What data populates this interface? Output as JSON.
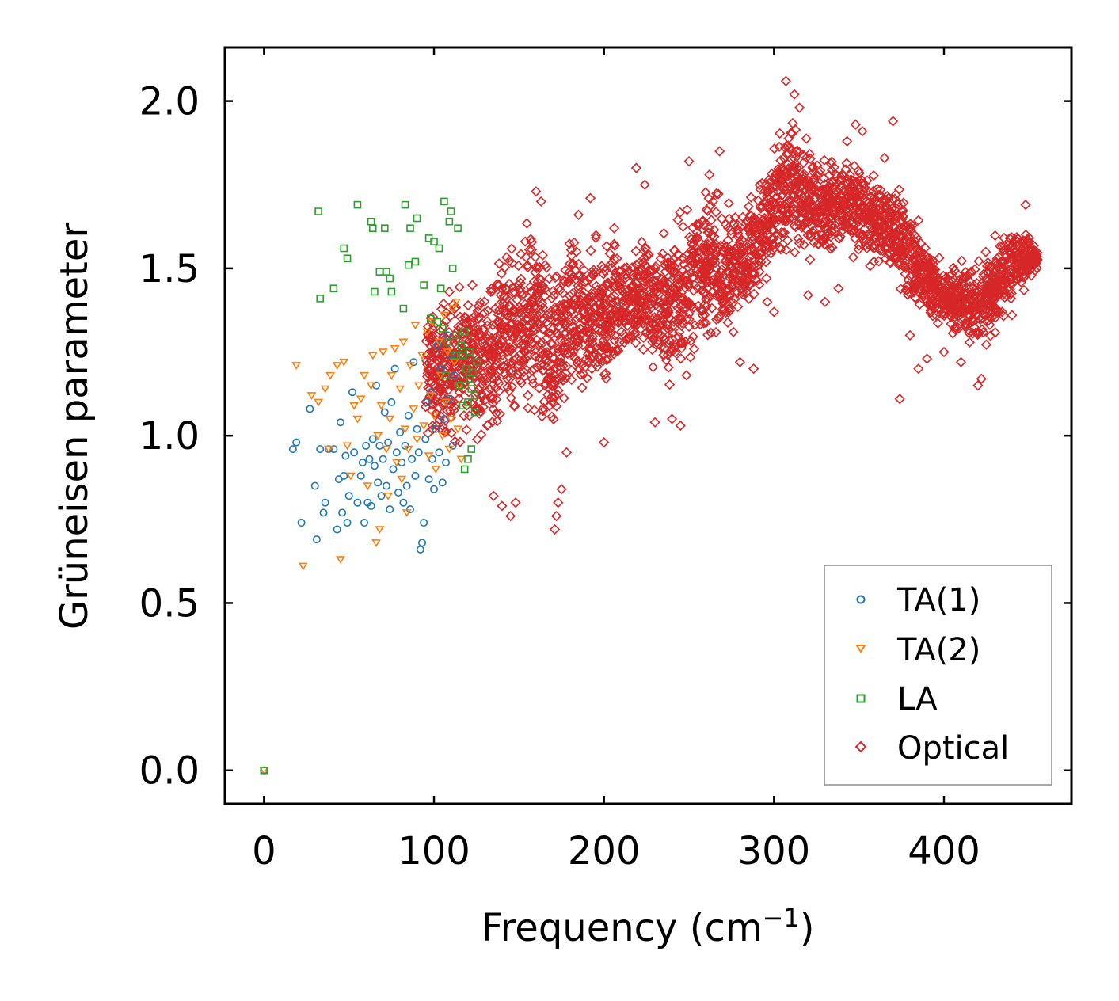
{
  "chart_data": {
    "type": "scatter",
    "title": "",
    "xlabel": "Frequency (cm",
    "xlabel_sup": "−1",
    "xlabel_close": ")",
    "ylabel": "Grüneisen parameter",
    "xlim": [
      -23,
      475
    ],
    "ylim": [
      -0.1,
      2.16
    ],
    "xticks": [
      0,
      100,
      200,
      300,
      400
    ],
    "xtick_labels": [
      "0",
      "100",
      "200",
      "300",
      "400"
    ],
    "yticks": [
      0.0,
      0.5,
      1.0,
      1.5,
      2.0
    ],
    "ytick_labels": [
      "0.0",
      "0.5",
      "1.0",
      "1.5",
      "2.0"
    ],
    "grid": false,
    "legend_position": "bottom-right",
    "series": [
      {
        "name": "TA(1)",
        "color": "#1f77b4",
        "marker": "circle",
        "points": [
          [
            0,
            0.0
          ],
          [
            17,
            0.96
          ],
          [
            19,
            0.98
          ],
          [
            22,
            0.74
          ],
          [
            27,
            1.08
          ],
          [
            30,
            0.85
          ],
          [
            31,
            0.69
          ],
          [
            33,
            0.96
          ],
          [
            35,
            0.77
          ],
          [
            36,
            0.8
          ],
          [
            38,
            0.96
          ],
          [
            41,
            0.96
          ],
          [
            43,
            0.72
          ],
          [
            44,
            0.87
          ],
          [
            45,
            1.04
          ],
          [
            46,
            0.77
          ],
          [
            47,
            0.88
          ],
          [
            48,
            0.94
          ],
          [
            49,
            0.74
          ],
          [
            50,
            0.82
          ],
          [
            52,
            1.13
          ],
          [
            53,
            0.95
          ],
          [
            55,
            0.8
          ],
          [
            57,
            0.88
          ],
          [
            58,
            0.92
          ],
          [
            59,
            0.74
          ],
          [
            60,
            0.97
          ],
          [
            61,
            0.8
          ],
          [
            62,
            0.93
          ],
          [
            63,
            0.79
          ],
          [
            64,
            0.99
          ],
          [
            65,
            0.91
          ],
          [
            66,
            1.15
          ],
          [
            67,
            0.86
          ],
          [
            68,
            0.97
          ],
          [
            69,
            0.82
          ],
          [
            70,
            0.93
          ],
          [
            71,
            1.07
          ],
          [
            72,
            0.85
          ],
          [
            73,
            0.98
          ],
          [
            74,
            0.78
          ],
          [
            75,
            1.1
          ],
          [
            76,
            0.9
          ],
          [
            77,
            1.2
          ],
          [
            78,
            0.95
          ],
          [
            79,
            0.83
          ],
          [
            80,
            1.01
          ],
          [
            81,
            0.92
          ],
          [
            82,
            0.8
          ],
          [
            83,
            0.97
          ],
          [
            84,
            0.85
          ],
          [
            85,
            1.06
          ],
          [
            86,
            0.78
          ],
          [
            87,
            0.93
          ],
          [
            88,
            1.22
          ],
          [
            89,
            0.88
          ],
          [
            90,
            1.02
          ],
          [
            91,
            0.95
          ],
          [
            92,
            0.66
          ],
          [
            93,
            0.68
          ],
          [
            94,
            0.74
          ],
          [
            95,
            0.99
          ],
          [
            96,
            1.1
          ],
          [
            97,
            0.87
          ],
          [
            98,
            1.13
          ],
          [
            99,
            0.93
          ],
          [
            100,
            0.84
          ],
          [
            101,
            1.02
          ],
          [
            102,
            1.27
          ],
          [
            103,
            0.95
          ],
          [
            104,
            1.2
          ],
          [
            105,
            0.86
          ],
          [
            106,
            1.05
          ],
          [
            107,
            0.92
          ],
          [
            108,
            1.3
          ],
          [
            109,
            1.11
          ],
          [
            110,
            1.24
          ],
          [
            111,
            0.97
          ],
          [
            112,
            1.18
          ]
        ]
      },
      {
        "name": "TA(2)",
        "color": "#ff7f0e",
        "marker": "triangle-down",
        "points": [
          [
            0,
            0.0
          ],
          [
            19,
            1.21
          ],
          [
            23,
            0.61
          ],
          [
            28,
            1.12
          ],
          [
            32,
            1.1
          ],
          [
            36,
            1.14
          ],
          [
            38,
            0.96
          ],
          [
            39,
            1.18
          ],
          [
            43,
            1.21
          ],
          [
            45,
            0.63
          ],
          [
            47,
            1.22
          ],
          [
            49,
            0.97
          ],
          [
            51,
            0.88
          ],
          [
            53,
            1.09
          ],
          [
            55,
            1.05
          ],
          [
            57,
            1.11
          ],
          [
            59,
            1.18
          ],
          [
            61,
            0.85
          ],
          [
            63,
            1.15
          ],
          [
            64,
            1.24
          ],
          [
            66,
            0.68
          ],
          [
            67,
            1.0
          ],
          [
            68,
            0.72
          ],
          [
            69,
            1.09
          ],
          [
            70,
            1.25
          ],
          [
            72,
            0.96
          ],
          [
            73,
            0.82
          ],
          [
            74,
            1.05
          ],
          [
            75,
            1.18
          ],
          [
            77,
            1.26
          ],
          [
            78,
            0.92
          ],
          [
            80,
            1.14
          ],
          [
            81,
            0.87
          ],
          [
            82,
            1.28
          ],
          [
            83,
            1.02
          ],
          [
            84,
            0.77
          ],
          [
            85,
            0.96
          ],
          [
            86,
            1.21
          ],
          [
            88,
            1.08
          ],
          [
            89,
            1.33
          ],
          [
            90,
            0.99
          ],
          [
            91,
            1.15
          ],
          [
            93,
            1.24
          ],
          [
            94,
            1.03
          ],
          [
            96,
            1.31
          ],
          [
            97,
            0.94
          ],
          [
            98,
            1.12
          ],
          [
            99,
            1.34
          ],
          [
            100,
            1.06
          ],
          [
            101,
            0.9
          ],
          [
            103,
            1.28
          ],
          [
            104,
            1.18
          ],
          [
            105,
            1.0
          ],
          [
            106,
            1.36
          ],
          [
            107,
            1.1
          ],
          [
            108,
            1.25
          ],
          [
            109,
            0.96
          ],
          [
            110,
            1.05
          ],
          [
            111,
            1.38
          ],
          [
            112,
            1.22
          ],
          [
            113,
            1.4
          ],
          [
            114,
            1.02
          ],
          [
            115,
            1.15
          ],
          [
            116,
            0.93
          ]
        ]
      },
      {
        "name": "LA",
        "color": "#2ca02c",
        "marker": "square",
        "points": [
          [
            0,
            0.0
          ],
          [
            32,
            1.67
          ],
          [
            33,
            1.41
          ],
          [
            41,
            1.44
          ],
          [
            47,
            1.56
          ],
          [
            49,
            1.53
          ],
          [
            55,
            1.69
          ],
          [
            63,
            1.64
          ],
          [
            64,
            1.62
          ],
          [
            65,
            1.43
          ],
          [
            68,
            1.49
          ],
          [
            71,
            1.62
          ],
          [
            72,
            1.49
          ],
          [
            74,
            1.47
          ],
          [
            75,
            1.43
          ],
          [
            82,
            1.38
          ],
          [
            83,
            1.69
          ],
          [
            85,
            1.51
          ],
          [
            86,
            1.62
          ],
          [
            89,
            1.52
          ],
          [
            90,
            1.65
          ],
          [
            94,
            1.45
          ],
          [
            97,
            1.59
          ],
          [
            98,
            1.35
          ],
          [
            100,
            1.58
          ],
          [
            102,
            1.34
          ],
          [
            103,
            1.56
          ],
          [
            104,
            1.44
          ],
          [
            105,
            1.32
          ],
          [
            106,
            1.7
          ],
          [
            107,
            1.18
          ],
          [
            108,
            1.28
          ],
          [
            109,
            1.64
          ],
          [
            110,
            1.67
          ],
          [
            111,
            1.5
          ],
          [
            112,
            1.24
          ],
          [
            113,
            1.3
          ],
          [
            114,
            1.62
          ],
          [
            115,
            1.15
          ],
          [
            116,
            1.27
          ],
          [
            117,
            1.09
          ],
          [
            118,
            1.31
          ],
          [
            119,
            1.2
          ],
          [
            120,
            0.93
          ],
          [
            121,
            1.25
          ],
          [
            122,
            1.14
          ],
          [
            123,
            1.19
          ],
          [
            124,
            1.07
          ],
          [
            125,
            1.22
          ],
          [
            118,
            0.9
          ],
          [
            122,
            0.96
          ],
          [
            120,
            1.1
          ],
          [
            117,
            1.24
          ],
          [
            121,
            1.17
          ],
          [
            124,
            1.12
          ]
        ]
      },
      {
        "name": "Optical",
        "color": "#d62728",
        "marker": "diamond",
        "generator": "envelope",
        "envelope": [
          [
            95,
            0.95,
            1.42
          ],
          [
            110,
            0.92,
            1.48
          ],
          [
            120,
            0.95,
            1.52
          ],
          [
            130,
            0.95,
            1.5
          ],
          [
            140,
            0.98,
            1.6
          ],
          [
            150,
            1.0,
            1.65
          ],
          [
            160,
            0.97,
            1.72
          ],
          [
            165,
            0.9,
            1.6
          ],
          [
            170,
            0.85,
            1.58
          ],
          [
            175,
            0.95,
            1.62
          ],
          [
            180,
            1.05,
            1.68
          ],
          [
            190,
            1.05,
            1.62
          ],
          [
            200,
            1.08,
            1.65
          ],
          [
            210,
            1.18,
            1.62
          ],
          [
            220,
            1.2,
            1.64
          ],
          [
            230,
            1.12,
            1.66
          ],
          [
            240,
            1.08,
            1.7
          ],
          [
            250,
            1.15,
            1.76
          ],
          [
            260,
            1.22,
            1.78
          ],
          [
            270,
            1.25,
            1.78
          ],
          [
            280,
            1.3,
            1.72
          ],
          [
            290,
            1.38,
            1.8
          ],
          [
            300,
            1.45,
            1.9
          ],
          [
            310,
            1.5,
            2.0
          ],
          [
            320,
            1.48,
            1.92
          ],
          [
            330,
            1.5,
            1.86
          ],
          [
            340,
            1.52,
            1.88
          ],
          [
            350,
            1.5,
            1.88
          ],
          [
            360,
            1.45,
            1.8
          ],
          [
            370,
            1.45,
            1.8
          ],
          [
            380,
            1.35,
            1.72
          ],
          [
            390,
            1.3,
            1.62
          ],
          [
            400,
            1.3,
            1.52
          ],
          [
            410,
            1.28,
            1.54
          ],
          [
            420,
            1.2,
            1.56
          ],
          [
            430,
            1.28,
            1.62
          ],
          [
            440,
            1.38,
            1.64
          ],
          [
            450,
            1.45,
            1.62
          ],
          [
            455,
            1.48,
            1.58
          ]
        ],
        "outliers": [
          [
            109,
            1.43
          ],
          [
            112,
            1.38
          ],
          [
            135,
            0.82
          ],
          [
            140,
            0.79
          ],
          [
            145,
            0.76
          ],
          [
            148,
            0.8
          ],
          [
            160,
            1.73
          ],
          [
            163,
            1.7
          ],
          [
            171,
            0.72
          ],
          [
            172,
            0.76
          ],
          [
            173,
            0.8
          ],
          [
            175,
            0.84
          ],
          [
            178,
            0.95
          ],
          [
            185,
            1.66
          ],
          [
            192,
            1.71
          ],
          [
            200,
            0.98
          ],
          [
            206,
            1.62
          ],
          [
            219,
            1.8
          ],
          [
            224,
            1.75
          ],
          [
            230,
            1.04
          ],
          [
            240,
            1.05
          ],
          [
            245,
            1.03
          ],
          [
            250,
            1.82
          ],
          [
            262,
            1.78
          ],
          [
            268,
            1.85
          ],
          [
            280,
            1.22
          ],
          [
            288,
            1.2
          ],
          [
            296,
            1.4
          ],
          [
            300,
            1.37
          ],
          [
            307,
            2.06
          ],
          [
            312,
            2.02
          ],
          [
            315,
            1.98
          ],
          [
            320,
            1.42
          ],
          [
            330,
            1.4
          ],
          [
            338,
            1.44
          ],
          [
            343,
            1.88
          ],
          [
            348,
            1.93
          ],
          [
            352,
            1.91
          ],
          [
            365,
            1.83
          ],
          [
            370,
            1.94
          ],
          [
            374,
            1.11
          ],
          [
            380,
            1.3
          ],
          [
            385,
            1.2
          ],
          [
            390,
            1.23
          ],
          [
            400,
            1.25
          ],
          [
            410,
            1.22
          ],
          [
            420,
            1.15
          ],
          [
            422,
            1.17
          ],
          [
            430,
            1.38
          ],
          [
            440,
            1.36
          ],
          [
            448,
            1.69
          ]
        ]
      }
    ]
  }
}
